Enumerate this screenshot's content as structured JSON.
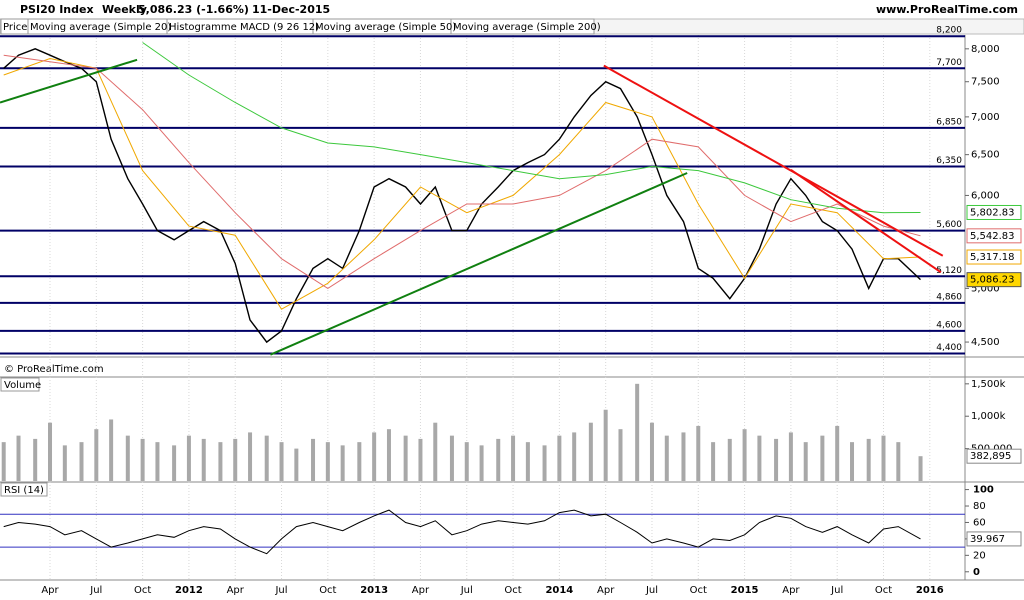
{
  "chart_data": {
    "type": "line",
    "title": "PSI20 Index",
    "period": "Weekly",
    "last_change": "5,086.23 (-1.66%)",
    "date": "11-Dec-2015",
    "source": "www.ProRealTime.com",
    "copyright": "© ProRealTime.com",
    "indicator_tab": "Histogramme MACD (9 26 12)",
    "log_scale": true,
    "xlim": [
      2010.98,
      2016.19
    ],
    "xticks": [
      {
        "value": 2011.25,
        "label": "Apr"
      },
      {
        "value": 2011.5,
        "label": "Jul"
      },
      {
        "value": 2011.75,
        "label": "Oct"
      },
      2012,
      {
        "value": 2012.25,
        "label": "Apr"
      },
      {
        "value": 2012.5,
        "label": "Jul"
      },
      {
        "value": 2012.75,
        "label": "Oct"
      },
      2013,
      {
        "value": 2013.25,
        "label": "Apr"
      },
      {
        "value": 2013.5,
        "label": "Jul"
      },
      {
        "value": 2013.75,
        "label": "Oct"
      },
      2014,
      {
        "value": 2014.25,
        "label": "Apr"
      },
      {
        "value": 2014.5,
        "label": "Jul"
      },
      {
        "value": 2014.75,
        "label": "Oct"
      },
      2015,
      {
        "value": 2015.25,
        "label": "Apr"
      },
      {
        "value": 2015.5,
        "label": "Jul"
      },
      {
        "value": 2015.75,
        "label": "Oct"
      },
      2016
    ],
    "ylim": [
      4370,
      8220
    ],
    "yticks": [
      {
        "value": 8000,
        "label": "8,000"
      },
      {
        "value": 7500,
        "label": "7,500"
      },
      {
        "value": 7000,
        "label": "7,000"
      },
      {
        "value": 6500,
        "label": "6,500"
      },
      {
        "value": 6000,
        "label": "6,000"
      },
      {
        "value": 5000,
        "label": "5,000"
      },
      {
        "value": 4500,
        "label": "4,500"
      }
    ],
    "x": [
      2011.0,
      2011.08,
      2011.17,
      2011.25,
      2011.33,
      2011.42,
      2011.5,
      2011.58,
      2011.67,
      2011.75,
      2011.83,
      2011.92,
      2012.0,
      2012.08,
      2012.17,
      2012.25,
      2012.33,
      2012.42,
      2012.5,
      2012.58,
      2012.67,
      2012.75,
      2012.83,
      2012.92,
      2013.0,
      2013.08,
      2013.17,
      2013.25,
      2013.33,
      2013.42,
      2013.5,
      2013.58,
      2013.67,
      2013.75,
      2013.83,
      2013.92,
      2014.0,
      2014.08,
      2014.17,
      2014.25,
      2014.33,
      2014.42,
      2014.5,
      2014.58,
      2014.67,
      2014.75,
      2014.83,
      2014.92,
      2015.0,
      2015.08,
      2015.17,
      2015.25,
      2015.33,
      2015.42,
      2015.5,
      2015.58,
      2015.67,
      2015.75,
      2015.83,
      2015.95
    ],
    "series": [
      {
        "name": "Price",
        "color": "#000000",
        "last_label": "5,086.23",
        "label_bg": "#ffd700",
        "values": [
          7700,
          7900,
          8000,
          7900,
          7800,
          7700,
          7500,
          6700,
          6200,
          5900,
          5600,
          5500,
          5600,
          5700,
          5600,
          5250,
          4700,
          4500,
          4600,
          4900,
          5200,
          5300,
          5200,
          5600,
          6100,
          6200,
          6100,
          5900,
          6100,
          5600,
          5600,
          5900,
          6100,
          6300,
          6400,
          6500,
          6700,
          7000,
          7300,
          7500,
          7400,
          7000,
          6500,
          6000,
          5700,
          5200,
          5100,
          4900,
          5100,
          5400,
          5900,
          6200,
          6000,
          5700,
          5600,
          5400,
          5000,
          5300,
          5300,
          5086.23
        ]
      },
      {
        "name": "Moving average (Simple 20)",
        "color": "#f0a800",
        "last_label": "5,317.18",
        "x": [
          2011.0,
          2011.25,
          2011.5,
          2011.75,
          2012.0,
          2012.25,
          2012.5,
          2012.75,
          2013.0,
          2013.25,
          2013.5,
          2013.75,
          2014.0,
          2014.25,
          2014.5,
          2014.75,
          2015.0,
          2015.25,
          2015.5,
          2015.75,
          2015.95
        ],
        "values": [
          7600,
          7850,
          7700,
          6300,
          5650,
          5550,
          4800,
          5050,
          5500,
          6100,
          5800,
          6000,
          6500,
          7200,
          7000,
          5900,
          5100,
          5900,
          5800,
          5300,
          5317.18
        ]
      },
      {
        "name": "Moving average (Simple 50)",
        "color": "#e06c6c",
        "last_label": "5,542.83",
        "x": [
          2011.0,
          2011.25,
          2011.5,
          2011.75,
          2012.0,
          2012.25,
          2012.5,
          2012.75,
          2013.0,
          2013.25,
          2013.5,
          2013.75,
          2014.0,
          2014.25,
          2014.5,
          2014.75,
          2015.0,
          2015.25,
          2015.5,
          2015.75,
          2015.95
        ],
        "values": [
          7900,
          7800,
          7700,
          7100,
          6400,
          5800,
          5300,
          5000,
          5300,
          5600,
          5900,
          5900,
          6000,
          6300,
          6700,
          6600,
          6000,
          5700,
          5900,
          5650,
          5542.83
        ]
      },
      {
        "name": "Moving average (Simple 200)",
        "color": "#3cc83c",
        "last_label": "5,802.83",
        "x": [
          2011.0,
          2011.25,
          2011.5,
          2011.75,
          2012.0,
          2012.25,
          2012.5,
          2012.75,
          2013.0,
          2013.25,
          2013.5,
          2013.75,
          2014.0,
          2014.25,
          2014.5,
          2014.75,
          2015.0,
          2015.25,
          2015.5,
          2015.75,
          2015.95
        ],
        "values": [
          null,
          null,
          null,
          8100,
          7600,
          7200,
          6850,
          6650,
          6600,
          6500,
          6400,
          6300,
          6200,
          6250,
          6350,
          6300,
          6150,
          5950,
          5850,
          5800,
          5802.83
        ]
      }
    ],
    "levels": [
      {
        "value": 8200,
        "label": "8,200"
      },
      {
        "value": 7700,
        "label": "7,700"
      },
      {
        "value": 6850,
        "label": "6,850"
      },
      {
        "value": 6350,
        "label": "6,350"
      },
      {
        "value": 5600,
        "label": "5,600"
      },
      {
        "value": 5120,
        "label": "5,120"
      },
      {
        "value": 4860,
        "label": "4,860"
      },
      {
        "value": 4600,
        "label": "4,600"
      },
      {
        "value": 4400,
        "label": "4,400"
      }
    ],
    "level_color": "#000066",
    "trendlines": [
      {
        "color": "#108010",
        "x": [
          2010.98,
          2011.72
        ],
        "y": [
          7200,
          7830
        ]
      },
      {
        "color": "#108010",
        "x": [
          2012.44,
          2014.69
        ],
        "y": [
          4390,
          6270
        ]
      },
      {
        "color": "#ee1111",
        "x": [
          2014.24,
          2016.07
        ],
        "y": [
          7740,
          5330
        ]
      },
      {
        "color": "#ee1111",
        "x": [
          2015.25,
          2016.06
        ],
        "y": [
          6310,
          5160
        ]
      }
    ],
    "volume": {
      "type": "bar",
      "title": "Volume",
      "color": "#a8a8a8",
      "last_label": "382,895",
      "ylim": [
        0,
        1590000
      ],
      "yticks": [
        {
          "value": 1500000,
          "label": "1,500k"
        },
        {
          "value": 1000000,
          "label": "1,000k"
        },
        {
          "value": 500000,
          "label": "500,000"
        }
      ],
      "values": [
        600000,
        700000,
        650000,
        900000,
        550000,
        600000,
        800000,
        950000,
        700000,
        650000,
        600000,
        550000,
        700000,
        650000,
        600000,
        650000,
        750000,
        700000,
        600000,
        500000,
        650000,
        600000,
        550000,
        600000,
        750000,
        800000,
        700000,
        650000,
        900000,
        700000,
        600000,
        550000,
        650000,
        700000,
        600000,
        550000,
        700000,
        750000,
        900000,
        1100000,
        800000,
        1500000,
        900000,
        700000,
        750000,
        850000,
        600000,
        650000,
        800000,
        700000,
        650000,
        750000,
        600000,
        700000,
        850000,
        600000,
        650000,
        700000,
        600000,
        382895
      ]
    },
    "rsi": {
      "type": "line",
      "title": "RSI (14)",
      "color": "#000000",
      "band_color": "#3030c0",
      "last_label": "39.967",
      "ylim": [
        -10,
        108
      ],
      "yticks": [
        100,
        80,
        60,
        40,
        20,
        0
      ],
      "bands": [
        70,
        30
      ],
      "values": [
        55,
        60,
        58,
        55,
        45,
        50,
        40,
        30,
        35,
        40,
        45,
        42,
        50,
        55,
        52,
        40,
        30,
        22,
        40,
        55,
        60,
        55,
        50,
        60,
        68,
        75,
        60,
        55,
        62,
        45,
        50,
        58,
        62,
        60,
        58,
        62,
        72,
        75,
        68,
        70,
        60,
        48,
        35,
        40,
        35,
        30,
        40,
        38,
        45,
        60,
        68,
        65,
        55,
        48,
        55,
        45,
        35,
        52,
        55,
        39.967
      ]
    }
  }
}
